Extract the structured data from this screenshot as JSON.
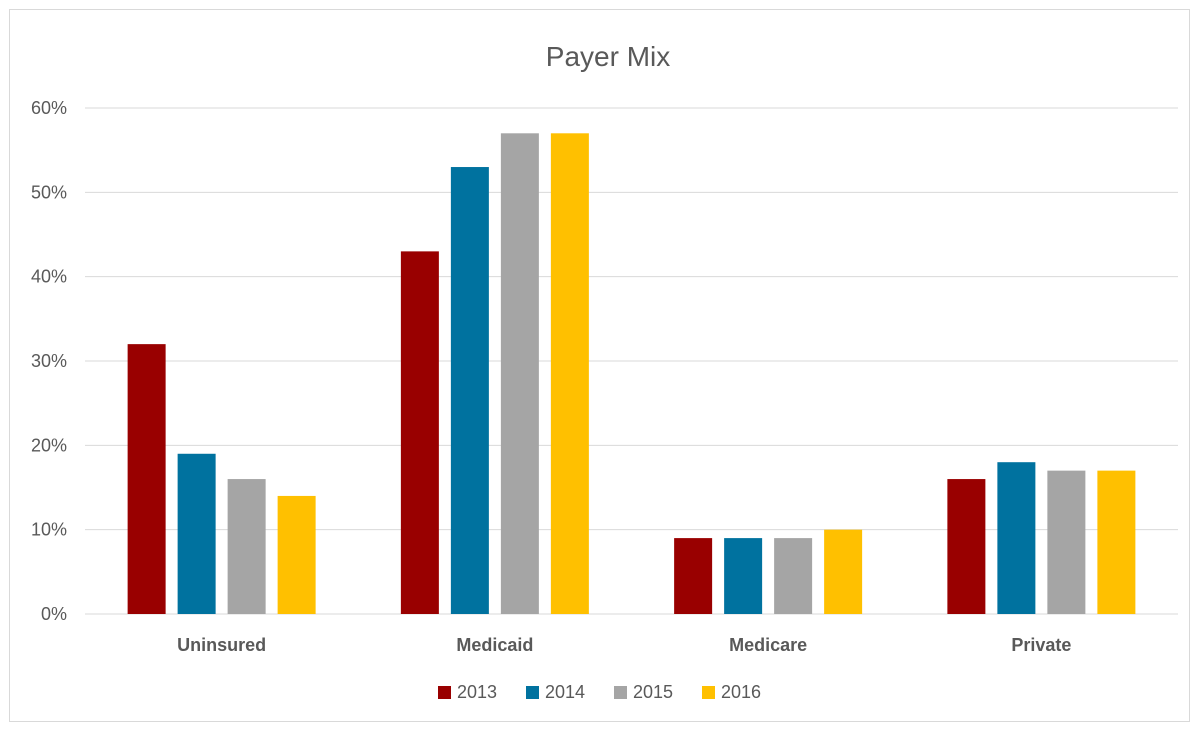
{
  "chart_data": {
    "type": "bar",
    "title": "Payer Mix",
    "xlabel": "",
    "ylabel": "",
    "categories": [
      "Uninsured",
      "Medicaid",
      "Medicare",
      "Private"
    ],
    "series": [
      {
        "name": "2013",
        "color": "#990000",
        "values": [
          0.32,
          0.43,
          0.09,
          0.16
        ]
      },
      {
        "name": "2014",
        "color": "#00729F",
        "values": [
          0.19,
          0.53,
          0.09,
          0.18
        ]
      },
      {
        "name": "2015",
        "color": "#A5A5A5",
        "values": [
          0.16,
          0.57,
          0.09,
          0.17
        ]
      },
      {
        "name": "2016",
        "color": "#FFC000",
        "values": [
          0.14,
          0.57,
          0.1,
          0.17
        ]
      }
    ],
    "ylim": [
      0,
      0.6
    ],
    "yticks": [
      0,
      0.1,
      0.2,
      0.3,
      0.4,
      0.5,
      0.6
    ],
    "ytick_labels": [
      "0%",
      "10%",
      "20%",
      "30%",
      "40%",
      "50%",
      "60%"
    ],
    "grid": true,
    "legend_position": "bottom"
  }
}
